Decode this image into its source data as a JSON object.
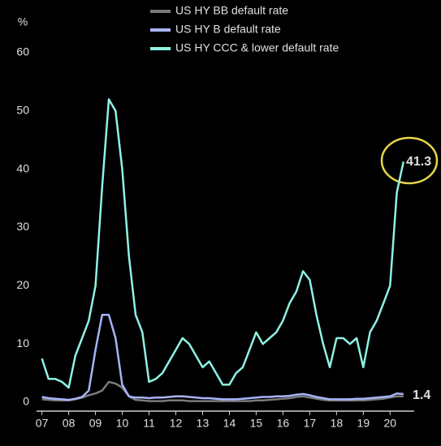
{
  "chart_data": {
    "type": "line",
    "y_label": "%",
    "x": [
      7.0,
      7.25,
      7.5,
      7.75,
      8.0,
      8.25,
      8.5,
      8.75,
      9.0,
      9.25,
      9.5,
      9.75,
      10.0,
      10.25,
      10.5,
      10.75,
      11.0,
      11.25,
      11.5,
      11.75,
      12.0,
      12.25,
      12.5,
      12.75,
      13.0,
      13.25,
      13.5,
      13.75,
      14.0,
      14.25,
      14.5,
      14.75,
      15.0,
      15.25,
      15.5,
      15.75,
      16.0,
      16.25,
      16.5,
      16.75,
      17.0,
      17.25,
      17.5,
      17.75,
      18.0,
      18.25,
      18.5,
      18.75,
      19.0,
      19.25,
      19.5,
      19.75,
      20.0,
      20.25,
      20.5
    ],
    "series": [
      {
        "name": "US HY BB default rate",
        "color": "#7a7a7a",
        "values": [
          0.5,
          0.4,
          0.3,
          0.3,
          0.3,
          0.5,
          0.8,
          1.2,
          1.5,
          2.0,
          3.5,
          3.2,
          2.5,
          1.0,
          0.4,
          0.3,
          0.2,
          0.2,
          0.2,
          0.3,
          0.3,
          0.3,
          0.2,
          0.2,
          0.2,
          0.2,
          0.2,
          0.2,
          0.2,
          0.2,
          0.2,
          0.2,
          0.3,
          0.3,
          0.4,
          0.5,
          0.6,
          0.7,
          0.9,
          1.0,
          0.8,
          0.6,
          0.4,
          0.3,
          0.3,
          0.3,
          0.3,
          0.3,
          0.3,
          0.4,
          0.5,
          0.6,
          0.8,
          1.0,
          1.0
        ]
      },
      {
        "name": "US HY B default rate",
        "color": "#a8b4f8",
        "values": [
          0.9,
          0.7,
          0.6,
          0.5,
          0.4,
          0.6,
          0.9,
          2.0,
          9.0,
          15.0,
          15.0,
          11.0,
          3.0,
          1.0,
          0.8,
          0.8,
          0.7,
          0.8,
          0.8,
          0.9,
          1.0,
          1.0,
          0.9,
          0.8,
          0.7,
          0.7,
          0.6,
          0.5,
          0.5,
          0.5,
          0.6,
          0.7,
          0.8,
          0.9,
          0.9,
          1.0,
          1.0,
          1.1,
          1.3,
          1.4,
          1.2,
          0.9,
          0.7,
          0.5,
          0.5,
          0.5,
          0.5,
          0.6,
          0.6,
          0.7,
          0.8,
          0.9,
          1.0,
          1.5,
          1.4
        ]
      },
      {
        "name": "US HY CCC & lower default rate",
        "color": "#8ff2e2",
        "values": [
          7.5,
          4,
          4,
          3.5,
          2.5,
          8,
          11,
          14,
          20,
          37,
          52,
          50,
          40,
          25,
          15,
          12,
          3.5,
          4,
          5,
          7,
          9,
          11,
          10,
          8,
          6,
          7,
          5,
          3,
          3,
          5,
          6,
          9,
          12,
          10,
          11,
          12,
          14,
          17,
          19,
          22.5,
          21,
          15,
          10,
          6,
          11,
          11,
          10,
          11,
          6,
          12,
          14,
          17,
          20,
          36,
          41.3
        ]
      }
    ],
    "xlim": [
      6.8,
      20.9
    ],
    "xticks": [
      {
        "value": 7,
        "label": "07"
      },
      {
        "value": 8,
        "label": "08"
      },
      {
        "value": 9,
        "label": "09"
      },
      10,
      11,
      12,
      13,
      14,
      15,
      16,
      17,
      18,
      19,
      20
    ],
    "ylim": [
      0,
      60
    ],
    "yticks": [
      0,
      10,
      20,
      30,
      40,
      50,
      60
    ]
  }
}
